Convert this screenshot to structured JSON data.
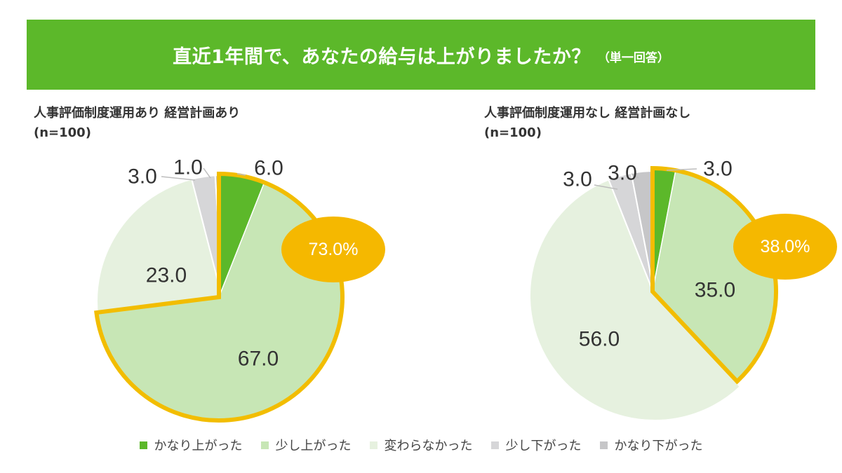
{
  "header": {
    "title": "直近1年間で、あなたの給与は上がりましたか？",
    "subtitle": "（単一回答）"
  },
  "colors": {
    "title_bar": "#5cb82a",
    "highlight": "#f5b800",
    "highlight_border": "#f2bd00"
  },
  "chart_data": [
    {
      "type": "pie",
      "title": "人事評価制度運用あり 経営計画あり",
      "n_label": "(n=100)",
      "categories": [
        "かなり上がった",
        "少し上がった",
        "変わらなかった",
        "少し下がった",
        "かなり下がった"
      ],
      "values": [
        6.0,
        67.0,
        23.0,
        3.0,
        1.0
      ],
      "value_labels": [
        "6.0",
        "67.0",
        "23.0",
        "3.0",
        "1.0"
      ],
      "highlight_label": "73.0%",
      "legend_position": "bottom"
    },
    {
      "type": "pie",
      "title": "人事評価制度運用なし 経営計画なし",
      "n_label": "(n=100)",
      "categories": [
        "かなり上がった",
        "少し上がった",
        "変わらなかった",
        "少し下がった",
        "かなり下がった"
      ],
      "values": [
        3.0,
        35.0,
        56.0,
        3.0,
        3.0
      ],
      "value_labels": [
        "3.0",
        "35.0",
        "56.0",
        "3.0",
        "3.0"
      ],
      "highlight_label": "38.0%",
      "legend_position": "bottom"
    }
  ],
  "legend": [
    {
      "label": "かなり上がった",
      "color": "#5cb82a"
    },
    {
      "label": "少し上がった",
      "color": "#c7e6b5"
    },
    {
      "label": "変わらなかった",
      "color": "#e6f1df"
    },
    {
      "label": "少し下がった",
      "color": "#d6d6d8"
    },
    {
      "label": "かなり下がった",
      "color": "#c6c6c8"
    }
  ]
}
